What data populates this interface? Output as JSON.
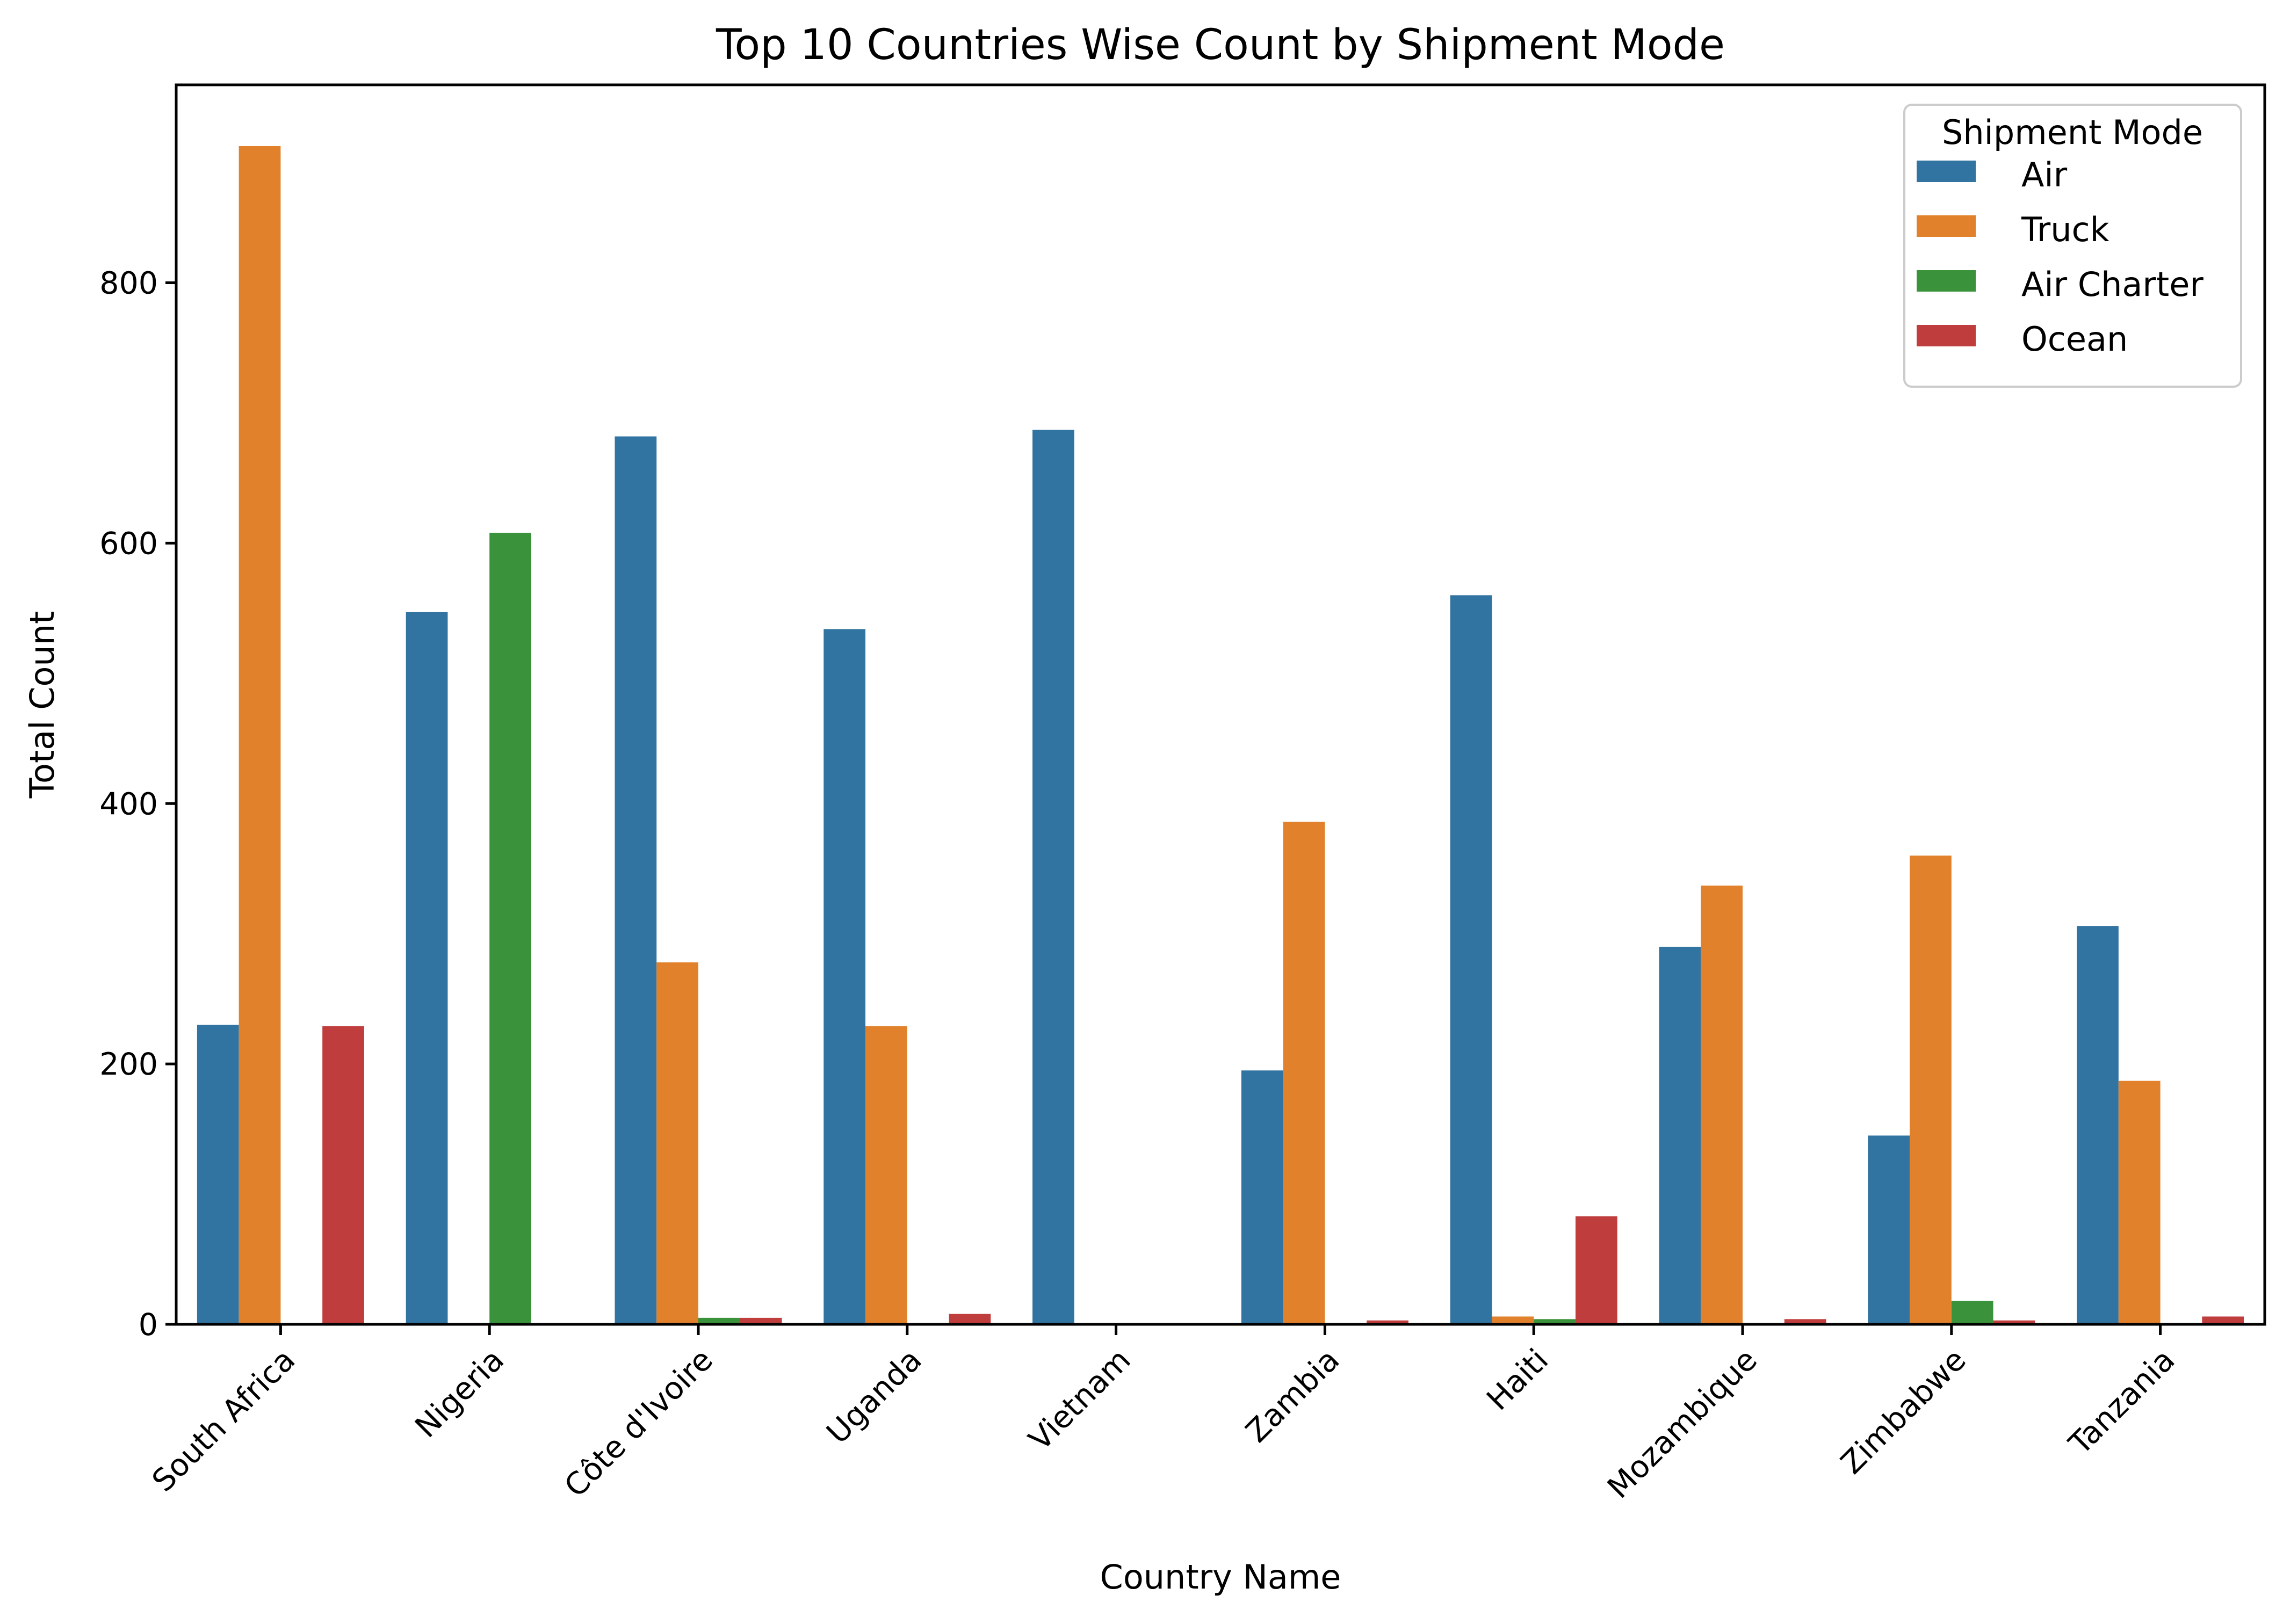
{
  "chart_data": {
    "type": "bar",
    "title": "Top 10 Countries Wise Count by Shipment Mode",
    "xlabel": "Country Name",
    "ylabel": "Total Count",
    "ylim": [
      0,
      952
    ],
    "yticks": [
      0,
      200,
      400,
      600,
      800
    ],
    "categories": [
      "South Africa",
      "Nigeria",
      "Côte d'Ivoire",
      "Uganda",
      "Vietnam",
      "Zambia",
      "Haiti",
      "Mozambique",
      "Zimbabwe",
      "Tanzania"
    ],
    "legend": {
      "title": "Shipment Mode",
      "placement": "top-right"
    },
    "grid": false,
    "series": [
      {
        "name": "Air",
        "color": "#3274a1",
        "values": [
          230,
          547,
          682,
          534,
          687,
          195,
          560,
          290,
          145,
          306
        ]
      },
      {
        "name": "Truck",
        "color": "#e1812c",
        "values": [
          905,
          1,
          278,
          229,
          0,
          386,
          6,
          337,
          360,
          187
        ]
      },
      {
        "name": "Air Charter",
        "color": "#3a923a",
        "values": [
          0,
          608,
          5,
          0,
          0,
          0,
          4,
          0,
          18,
          0
        ]
      },
      {
        "name": "Ocean",
        "color": "#c03d3e",
        "values": [
          229,
          0,
          5,
          8,
          0,
          3,
          83,
          4,
          3,
          6
        ]
      }
    ]
  }
}
